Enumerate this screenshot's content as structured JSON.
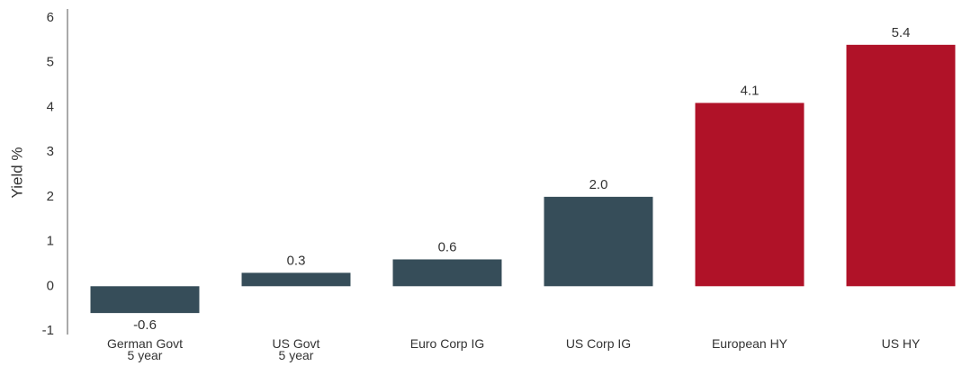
{
  "chart_data": {
    "type": "bar",
    "y_label": "Yield %",
    "categories": [
      "German Govt\n5 year",
      "US Govt\n5 year",
      "Euro Corp IG",
      "US Corp IG",
      "European HY",
      "US HY"
    ],
    "values": [
      -0.6,
      0.3,
      0.6,
      2.0,
      4.1,
      5.4
    ],
    "value_labels": [
      "-0.6",
      "0.3",
      "0.6",
      "2.0",
      "4.1",
      "5.4"
    ],
    "colors": [
      "#364d59",
      "#364d59",
      "#364d59",
      "#364d59",
      "#b01228",
      "#b01228"
    ],
    "ylim": [
      -1,
      6
    ],
    "yticks": [
      -1,
      0,
      1,
      2,
      3,
      4,
      5,
      6
    ],
    "grid": false
  }
}
